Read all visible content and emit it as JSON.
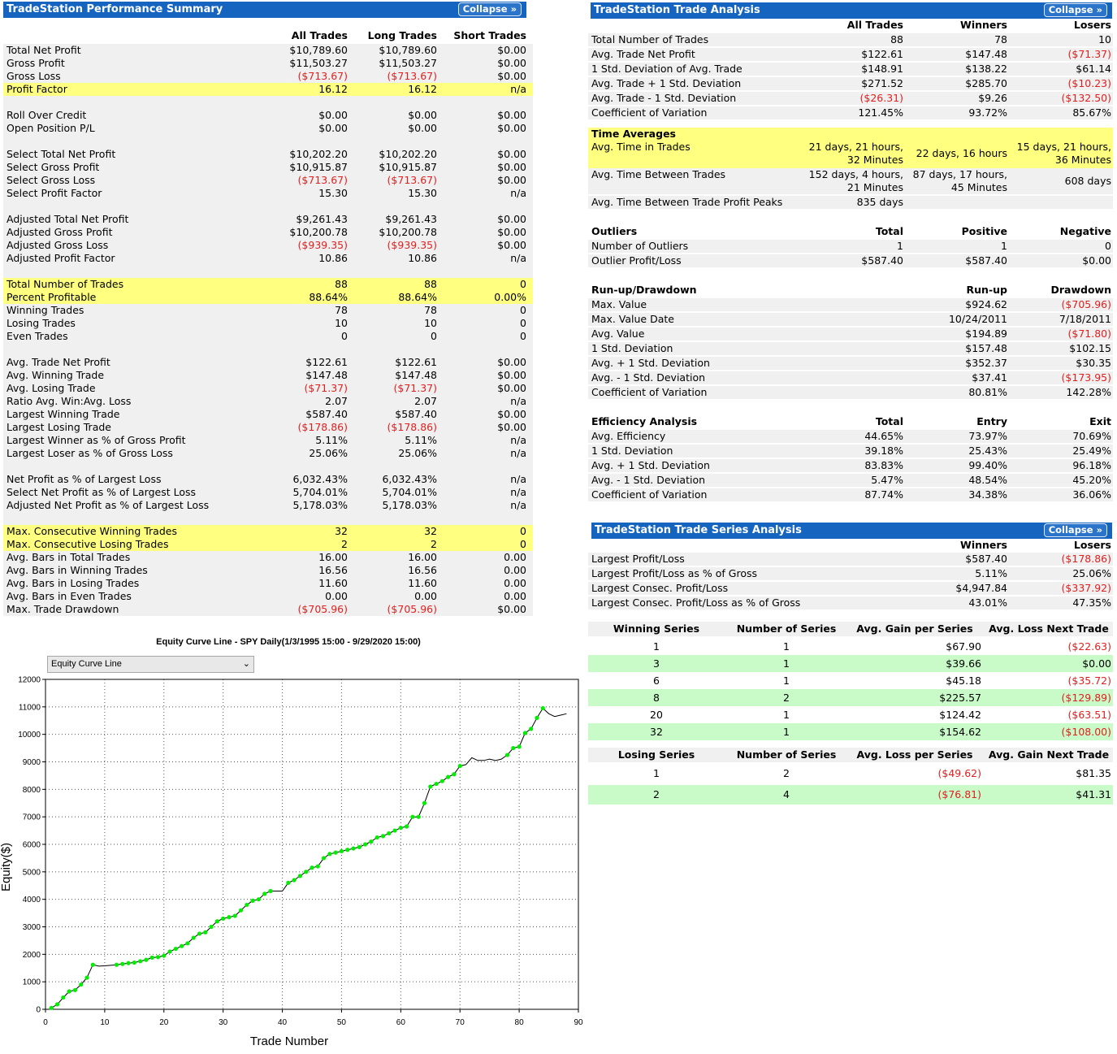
{
  "perf": {
    "title": "TradeStation Performance Summary",
    "collapse": "Collapse »",
    "headers": [
      "All Trades",
      "Long Trades",
      "Short Trades"
    ],
    "rows": [
      {
        "label": "Total Net Profit",
        "v": [
          "$10,789.60",
          "$10,789.60",
          "$0.00"
        ]
      },
      {
        "label": "Gross Profit",
        "v": [
          "$11,503.27",
          "$11,503.27",
          "$0.00"
        ]
      },
      {
        "label": "Gross Loss",
        "v": [
          "($713.67)",
          "($713.67)",
          "$0.00"
        ]
      },
      {
        "label": "Profit Factor",
        "v": [
          "16.12",
          "16.12",
          "n/a"
        ]
      },
      {
        "label": "Roll Over Credit",
        "v": [
          "$0.00",
          "$0.00",
          "$0.00"
        ]
      },
      {
        "label": "Open Position P/L",
        "v": [
          "$0.00",
          "$0.00",
          "$0.00"
        ]
      },
      {
        "label": "Select Total Net Profit",
        "v": [
          "$10,202.20",
          "$10,202.20",
          "$0.00"
        ]
      },
      {
        "label": "Select Gross Profit",
        "v": [
          "$10,915.87",
          "$10,915.87",
          "$0.00"
        ]
      },
      {
        "label": "Select Gross Loss",
        "v": [
          "($713.67)",
          "($713.67)",
          "$0.00"
        ]
      },
      {
        "label": "Select Profit Factor",
        "v": [
          "15.30",
          "15.30",
          "n/a"
        ]
      },
      {
        "label": "Adjusted Total Net Profit",
        "v": [
          "$9,261.43",
          "$9,261.43",
          "$0.00"
        ]
      },
      {
        "label": "Adjusted Gross Profit",
        "v": [
          "$10,200.78",
          "$10,200.78",
          "$0.00"
        ]
      },
      {
        "label": "Adjusted Gross Loss",
        "v": [
          "($939.35)",
          "($939.35)",
          "$0.00"
        ]
      },
      {
        "label": "Adjusted Profit Factor",
        "v": [
          "10.86",
          "10.86",
          "n/a"
        ]
      },
      {
        "label": "Total Number of Trades",
        "v": [
          "88",
          "88",
          "0"
        ]
      },
      {
        "label": "Percent Profitable",
        "v": [
          "88.64%",
          "88.64%",
          "0.00%"
        ]
      },
      {
        "label": "Winning Trades",
        "v": [
          "78",
          "78",
          "0"
        ]
      },
      {
        "label": "Losing Trades",
        "v": [
          "10",
          "10",
          "0"
        ]
      },
      {
        "label": "Even Trades",
        "v": [
          "0",
          "0",
          "0"
        ]
      },
      {
        "label": "Avg. Trade Net Profit",
        "v": [
          "$122.61",
          "$122.61",
          "$0.00"
        ]
      },
      {
        "label": "Avg. Winning Trade",
        "v": [
          "$147.48",
          "$147.48",
          "$0.00"
        ]
      },
      {
        "label": "Avg. Losing Trade",
        "v": [
          "($71.37)",
          "($71.37)",
          "$0.00"
        ]
      },
      {
        "label": "Ratio Avg. Win:Avg. Loss",
        "v": [
          "2.07",
          "2.07",
          "n/a"
        ]
      },
      {
        "label": "Largest Winning Trade",
        "v": [
          "$587.40",
          "$587.40",
          "$0.00"
        ]
      },
      {
        "label": "Largest Losing Trade",
        "v": [
          "($178.86)",
          "($178.86)",
          "$0.00"
        ]
      },
      {
        "label": "Largest Winner as % of Gross Profit",
        "v": [
          "5.11%",
          "5.11%",
          "n/a"
        ]
      },
      {
        "label": "Largest Loser as % of Gross Loss",
        "v": [
          "25.06%",
          "25.06%",
          "n/a"
        ]
      },
      {
        "label": "Net Profit as % of Largest Loss",
        "v": [
          "6,032.43%",
          "6,032.43%",
          "n/a"
        ]
      },
      {
        "label": "Select Net Profit as % of Largest Loss",
        "v": [
          "5,704.01%",
          "5,704.01%",
          "n/a"
        ]
      },
      {
        "label": "Adjusted Net Profit as % of Largest Loss",
        "v": [
          "5,178.03%",
          "5,178.03%",
          "n/a"
        ]
      },
      {
        "label": "Max. Consecutive Winning Trades",
        "v": [
          "32",
          "32",
          "0"
        ]
      },
      {
        "label": "Max. Consecutive Losing Trades",
        "v": [
          "2",
          "2",
          "0"
        ]
      },
      {
        "label": "Avg. Bars in Total Trades",
        "v": [
          "16.00",
          "16.00",
          "0.00"
        ]
      },
      {
        "label": "Avg. Bars in Winning Trades",
        "v": [
          "16.56",
          "16.56",
          "0.00"
        ]
      },
      {
        "label": "Avg. Bars in Losing Trades",
        "v": [
          "11.60",
          "11.60",
          "0.00"
        ]
      },
      {
        "label": "Avg. Bars in Even Trades",
        "v": [
          "0.00",
          "0.00",
          "0.00"
        ]
      },
      {
        "label": "Max. Trade Drawdown",
        "v": [
          "($705.96)",
          "($705.96)",
          "$0.00"
        ]
      }
    ]
  },
  "analysis": {
    "title": "TradeStation Trade Analysis",
    "collapse": "Collapse »",
    "headers": [
      "All Trades",
      "Winners",
      "Losers"
    ],
    "rows": [
      {
        "label": "Total Number of Trades",
        "v": [
          "88",
          "78",
          "10"
        ]
      },
      {
        "label": "Avg. Trade Net Profit",
        "v": [
          "$122.61",
          "$147.48",
          "($71.37)"
        ]
      },
      {
        "label": "1 Std. Deviation of Avg. Trade",
        "v": [
          "$148.91",
          "$138.22",
          "$61.14"
        ]
      },
      {
        "label": "Avg. Trade + 1 Std. Deviation",
        "v": [
          "$271.52",
          "$285.70",
          "($10.23)"
        ]
      },
      {
        "label": "Avg. Trade - 1 Std. Deviation",
        "v": [
          "($26.31)",
          "$9.26",
          "($132.50)"
        ]
      },
      {
        "label": "Coefficient of Variation",
        "v": [
          "121.45%",
          "93.72%",
          "85.67%"
        ]
      }
    ],
    "time": {
      "heading": "Time Averages",
      "r1": {
        "label": "Avg. Time in Trades",
        "a1": "21 days, 21 hours,",
        "a2": "32 Minutes",
        "b": "22 days, 16 hours",
        "c1": "15 days, 21 hours,",
        "c2": "36 Minutes"
      },
      "r2": {
        "label": "Avg. Time Between Trades",
        "a1": "152 days, 4 hours,",
        "a2": "21 Minutes",
        "b1": "87 days, 17 hours,",
        "b2": "45 Minutes",
        "c": "608 days"
      },
      "r3": {
        "label": "Avg. Time Between Trade Profit Peaks",
        "a": "835 days"
      }
    },
    "outliers": {
      "heading": "Outliers",
      "headers": [
        "Total",
        "Positive",
        "Negative"
      ],
      "rows": [
        {
          "label": "Number of Outliers",
          "v": [
            "1",
            "1",
            "0"
          ]
        },
        {
          "label": "Outlier Profit/Loss",
          "v": [
            "$587.40",
            "$587.40",
            "$0.00"
          ]
        }
      ]
    },
    "runup": {
      "heading": "Run-up/Drawdown",
      "headers": [
        "Run-up",
        "Drawdown"
      ],
      "rows": [
        {
          "label": "Max. Value",
          "v": [
            "$924.62",
            "($705.96)"
          ]
        },
        {
          "label": "Max. Value Date",
          "v": [
            "10/24/2011",
            "7/18/2011"
          ]
        },
        {
          "label": "Avg. Value",
          "v": [
            "$194.89",
            "($71.80)"
          ]
        },
        {
          "label": "1 Std. Deviation",
          "v": [
            "$157.48",
            "$102.15"
          ]
        },
        {
          "label": "Avg. + 1 Std. Deviation",
          "v": [
            "$352.37",
            "$30.35"
          ]
        },
        {
          "label": "Avg. - 1 Std. Deviation",
          "v": [
            "$37.41",
            "($173.95)"
          ]
        },
        {
          "label": "Coefficient of Variation",
          "v": [
            "80.81%",
            "142.28%"
          ]
        }
      ]
    },
    "efficiency": {
      "heading": "Efficiency Analysis",
      "headers": [
        "Total",
        "Entry",
        "Exit"
      ],
      "rows": [
        {
          "label": "Avg. Efficiency",
          "v": [
            "44.65%",
            "73.97%",
            "70.69%"
          ]
        },
        {
          "label": "1 Std. Deviation",
          "v": [
            "39.18%",
            "25.43%",
            "25.49%"
          ]
        },
        {
          "label": "Avg. + 1 Std. Deviation",
          "v": [
            "83.83%",
            "99.40%",
            "96.18%"
          ]
        },
        {
          "label": "Avg. - 1 Std. Deviation",
          "v": [
            "5.47%",
            "48.54%",
            "45.20%"
          ]
        },
        {
          "label": "Coefficient of Variation",
          "v": [
            "87.74%",
            "34.38%",
            "36.06%"
          ]
        }
      ]
    }
  },
  "series": {
    "title": "TradeStation Trade Series Analysis",
    "collapse": "Collapse »",
    "headers": [
      "Winners",
      "Losers"
    ],
    "rows": [
      {
        "label": "Largest Profit/Loss",
        "v": [
          "$587.40",
          "($178.86)"
        ]
      },
      {
        "label": "Largest Profit/Loss as % of Gross",
        "v": [
          "5.11%",
          "25.06%"
        ]
      },
      {
        "label": "Largest Consec. Profit/Loss",
        "v": [
          "$4,947.84",
          "($337.92)"
        ]
      },
      {
        "label": "Largest Consec. Profit/Loss as % of Gross",
        "v": [
          "43.01%",
          "47.35%"
        ]
      }
    ],
    "winning": {
      "headers": [
        "Winning Series",
        "Number of Series",
        "Avg. Gain per Series",
        "Avg. Loss Next Trade"
      ],
      "rows": [
        [
          "1",
          "1",
          "$67.90",
          "($22.63)"
        ],
        [
          "3",
          "1",
          "$39.66",
          "$0.00"
        ],
        [
          "6",
          "1",
          "$45.18",
          "($35.72)"
        ],
        [
          "8",
          "2",
          "$225.57",
          "($129.89)"
        ],
        [
          "20",
          "1",
          "$124.42",
          "($63.51)"
        ],
        [
          "32",
          "1",
          "$154.62",
          "($108.00)"
        ]
      ]
    },
    "losing": {
      "headers": [
        "Losing Series",
        "Number of Series",
        "Avg. Loss per Series",
        "Avg. Gain Next Trade"
      ],
      "rows": [
        [
          "1",
          "2",
          "($49.62)",
          "$81.35"
        ],
        [
          "2",
          "4",
          "($76.81)",
          "$41.31"
        ]
      ]
    }
  },
  "equity": {
    "title": "Equity Curve Line - SPY Daily(1/3/1995 15:00 - 9/29/2020 15:00)",
    "dropdown": "Equity Curve Line",
    "colors": {
      "line": "#000000",
      "marker": "#00ee00"
    }
  },
  "chart_data": {
    "type": "line",
    "xlabel": "Trade Number",
    "ylabel": "Equity($)",
    "xlim": [
      0,
      90
    ],
    "ylim": [
      0,
      12000
    ],
    "xticks": [
      0,
      10,
      20,
      30,
      40,
      50,
      60,
      70,
      80,
      90
    ],
    "yticks": [
      0,
      1000,
      2000,
      3000,
      4000,
      5000,
      6000,
      7000,
      8000,
      9000,
      10000,
      11000,
      12000
    ],
    "x": [
      1,
      2,
      3,
      4,
      5,
      6,
      7,
      8,
      9,
      10,
      11,
      12,
      13,
      14,
      15,
      16,
      17,
      18,
      19,
      20,
      21,
      22,
      23,
      24,
      25,
      26,
      27,
      28,
      29,
      30,
      31,
      32,
      33,
      34,
      35,
      36,
      37,
      38,
      39,
      40,
      41,
      42,
      43,
      44,
      45,
      46,
      47,
      48,
      49,
      50,
      51,
      52,
      53,
      54,
      55,
      56,
      57,
      58,
      59,
      60,
      61,
      62,
      63,
      64,
      65,
      66,
      67,
      68,
      69,
      70,
      71,
      72,
      73,
      74,
      75,
      76,
      77,
      78,
      79,
      80,
      81,
      82,
      83,
      84,
      85,
      86,
      87,
      88
    ],
    "equity": [
      50,
      180,
      430,
      650,
      700,
      900,
      1150,
      1620,
      1570,
      1580,
      1600,
      1620,
      1650,
      1680,
      1700,
      1750,
      1800,
      1880,
      1900,
      1950,
      2100,
      2200,
      2300,
      2400,
      2600,
      2750,
      2800,
      3000,
      3200,
      3300,
      3350,
      3400,
      3600,
      3800,
      3950,
      4000,
      4200,
      4300,
      4300,
      4300,
      4600,
      4700,
      4850,
      5000,
      5150,
      5200,
      5500,
      5650,
      5700,
      5750,
      5800,
      5850,
      5900,
      6000,
      6100,
      6250,
      6300,
      6400,
      6500,
      6600,
      6650,
      7000,
      7000,
      7500,
      8100,
      8200,
      8300,
      8450,
      8550,
      8850,
      8900,
      9150,
      9050,
      9050,
      9100,
      9050,
      9100,
      9250,
      9500,
      9550,
      10050,
      10200,
      10600,
      10950,
      10750,
      10650,
      10700,
      10750
    ],
    "marker": [
      1,
      1,
      1,
      1,
      1,
      1,
      1,
      1,
      0,
      0,
      0,
      1,
      1,
      1,
      1,
      1,
      1,
      1,
      1,
      1,
      1,
      1,
      1,
      1,
      1,
      1,
      1,
      1,
      1,
      1,
      1,
      1,
      1,
      1,
      1,
      1,
      1,
      1,
      0,
      0,
      1,
      1,
      1,
      1,
      1,
      1,
      1,
      1,
      1,
      1,
      1,
      1,
      1,
      1,
      1,
      1,
      1,
      1,
      1,
      1,
      1,
      1,
      1,
      1,
      1,
      1,
      1,
      1,
      1,
      1,
      0,
      0,
      0,
      0,
      0,
      0,
      0,
      1,
      1,
      1,
      1,
      1,
      1,
      1,
      0,
      0,
      0,
      0
    ]
  }
}
